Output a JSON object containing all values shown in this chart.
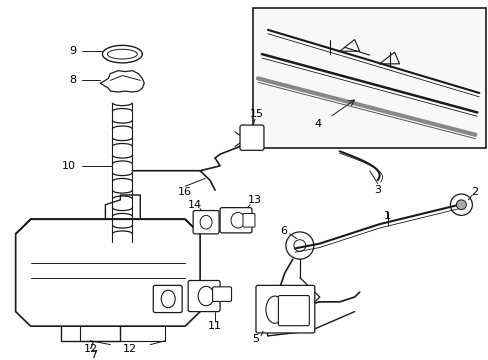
{
  "bg_color": "#ffffff",
  "line_color": "#1a1a1a",
  "label_color": "#000000",
  "figsize": [
    4.89,
    3.6
  ],
  "dpi": 100,
  "box_fill": "#f0f0f0",
  "gray": "#666666"
}
